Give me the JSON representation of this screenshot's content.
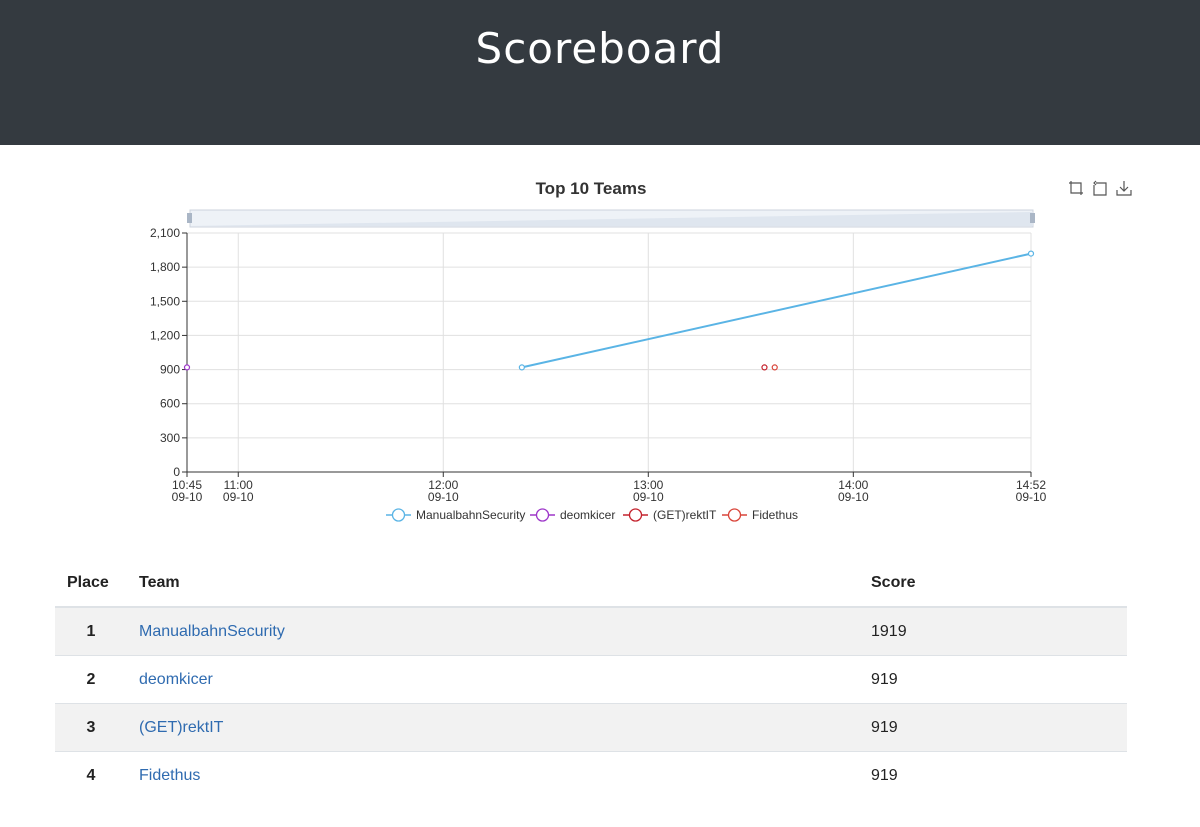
{
  "header": {
    "title": "Scoreboard"
  },
  "toolbox": {
    "icons": [
      "zoom-icon",
      "zoom-reset-icon",
      "download-icon"
    ]
  },
  "chart_data": {
    "type": "line",
    "title": "Top 10 Teams",
    "ylim": [
      0,
      2100
    ],
    "y_ticks": [
      "0",
      "300",
      "600",
      "900",
      "1,200",
      "1,500",
      "1,800",
      "2,100"
    ],
    "x_ticks": [
      {
        "time": "10:45",
        "date": "09-10"
      },
      {
        "time": "11:00",
        "date": "09-10"
      },
      {
        "time": "12:00",
        "date": "09-10"
      },
      {
        "time": "13:00",
        "date": "09-10"
      },
      {
        "time": "14:00",
        "date": "09-10"
      },
      {
        "time": "14:52",
        "date": "09-10"
      }
    ],
    "xlim": [
      "10:45",
      "14:52"
    ],
    "grid": true,
    "legend_position": "bottom",
    "series": [
      {
        "name": "ManualbahnSecurity",
        "color": "#5ab4e5",
        "points": [
          {
            "x": "12:23",
            "y": 919
          },
          {
            "x": "14:52",
            "y": 1919
          }
        ]
      },
      {
        "name": "deomkicer",
        "color": "#9d36c9",
        "points": [
          {
            "x": "10:45",
            "y": 919
          }
        ]
      },
      {
        "name": "(GET)rektIT",
        "color": "#c4222d",
        "points": [
          {
            "x": "13:34",
            "y": 919
          }
        ]
      },
      {
        "name": "Fidethus",
        "color": "#d9453a",
        "points": [
          {
            "x": "13:37",
            "y": 919
          }
        ]
      }
    ]
  },
  "table": {
    "headers": {
      "place": "Place",
      "team": "Team",
      "score": "Score"
    },
    "rows": [
      {
        "place": "1",
        "team": "ManualbahnSecurity",
        "score": "1919"
      },
      {
        "place": "2",
        "team": "deomkicer",
        "score": "919"
      },
      {
        "place": "3",
        "team": "(GET)rektIT",
        "score": "919"
      },
      {
        "place": "4",
        "team": "Fidethus",
        "score": "919"
      }
    ]
  }
}
